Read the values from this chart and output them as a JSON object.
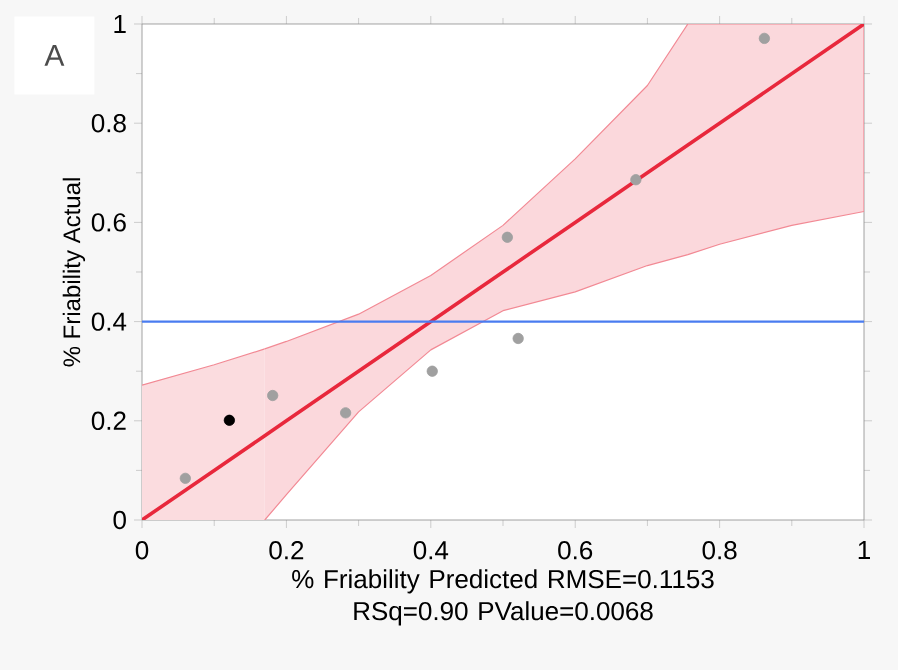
{
  "chart_data": {
    "type": "scatter",
    "xlabel": "% Friability Predicted RMSE=0.1153 RSq=0.90 PValue=0.0068",
    "ylabel": "% Friability Actual",
    "annotations": [
      "A"
    ],
    "xlim": [
      0,
      1
    ],
    "ylim": [
      0,
      1
    ],
    "xticks": [
      0,
      0.2,
      0.4,
      0.6,
      0.8,
      1
    ],
    "yticks": [
      0,
      0.2,
      0.4,
      0.6,
      0.8,
      1
    ],
    "ref_lines": [
      {
        "axis": "y",
        "value": 0.4,
        "color": "#4a7cf0"
      }
    ],
    "series": [
      {
        "type": "line",
        "color": "#e8283c",
        "x": [
          0,
          0.1,
          0.17,
          0.2,
          0.3,
          0.4,
          0.5,
          0.6,
          0.7,
          0.756,
          0.8,
          0.9,
          1
        ],
        "values": [
          0,
          0.1,
          0.17,
          0.2,
          0.3,
          0.4,
          0.5,
          0.6,
          0.7,
          0.756,
          0.8,
          0.9,
          1
        ],
        "lower": [
          null,
          null,
          0,
          0.051,
          0.218,
          0.343,
          0.422,
          0.46,
          0.513,
          0.535,
          0.556,
          0.594,
          0.622
        ],
        "upper": [
          null,
          null,
          0.345,
          0.36,
          0.415,
          0.493,
          0.594,
          0.728,
          0.876,
          1,
          1,
          1,
          1
        ]
      },
      {
        "type": "area",
        "color": "#f28994",
        "x": [
          0,
          0.1,
          0.17
        ],
        "values": [
          0.272,
          0.313,
          0.345
        ]
      },
      {
        "type": "scatter",
        "marker": "circle",
        "x": [
          0.06,
          0.121,
          0.181,
          0.282,
          0.402,
          0.506,
          0.521,
          0.684,
          0.862
        ],
        "values": [
          0.084,
          0.201,
          0.251,
          0.216,
          0.3,
          0.57,
          0.366,
          0.686,
          0.971
        ],
        "colors": [
          "#a0a0a0",
          "#000000",
          "#a0a0a0",
          "#a0a0a0",
          "#a0a0a0",
          "#a0a0a0",
          "#a0a0a0",
          "#a0a0a0",
          "#a0a0a0"
        ]
      }
    ]
  }
}
